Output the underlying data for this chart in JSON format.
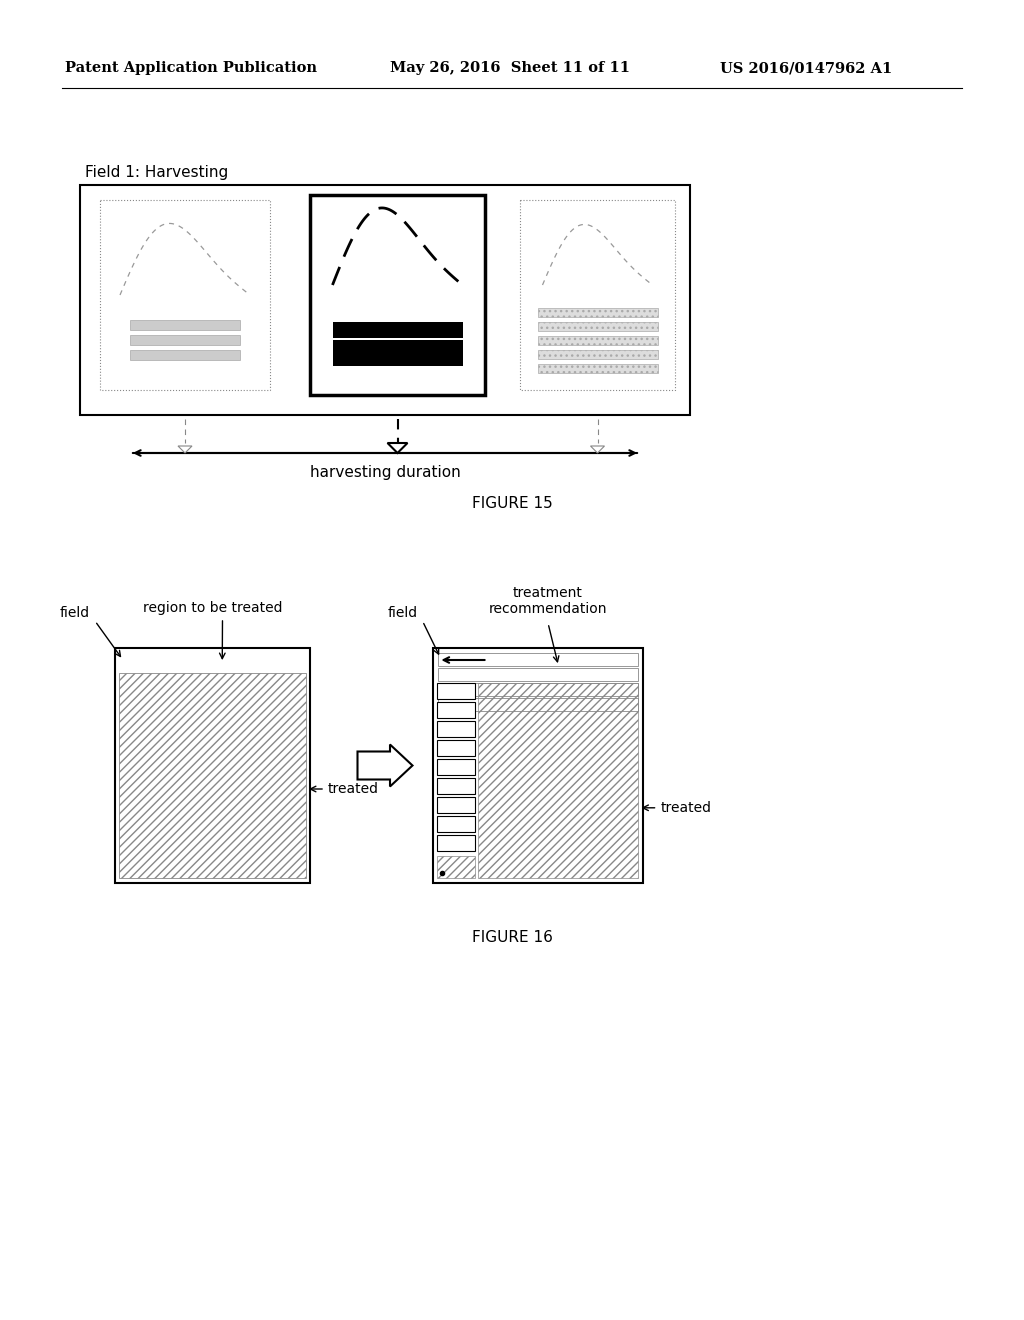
{
  "bg_color": "#ffffff",
  "header_left": "Patent Application Publication",
  "header_mid": "May 26, 2016  Sheet 11 of 11",
  "header_right": "US 2016/0147962 A1",
  "fig15_label": "FIGURE 15",
  "fig16_label": "FIGURE 16",
  "fig15_title": "Field 1: Harvesting",
  "fig15_timeline_label": "harvesting duration",
  "fig16_labels": {
    "field_left": "field",
    "region": "region to be treated",
    "treated_left": "treated",
    "field_right": "field",
    "treatment": "treatment\nrecommendation",
    "treated_right": "treated"
  }
}
